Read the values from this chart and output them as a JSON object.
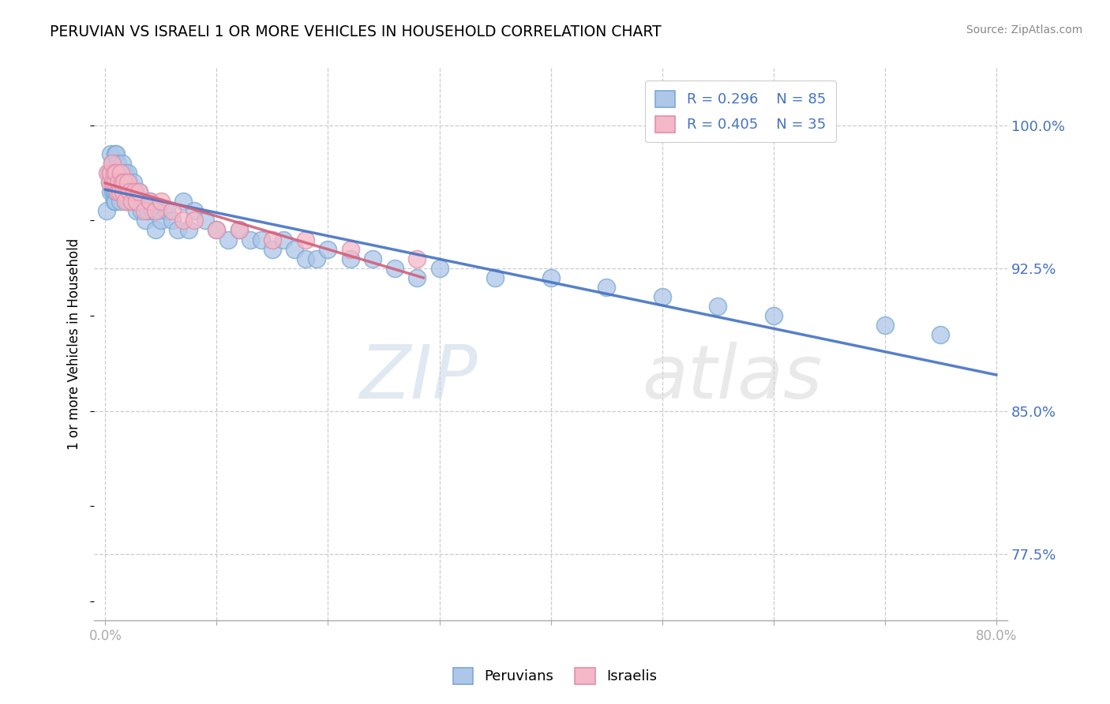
{
  "title": "PERUVIAN VS ISRAELI 1 OR MORE VEHICLES IN HOUSEHOLD CORRELATION CHART",
  "source": "Source: ZipAtlas.com",
  "ylabel": "1 or more Vehicles in Household",
  "watermark": "ZIPatlas",
  "legend_r1": "R = 0.296",
  "legend_n1": "N = 85",
  "legend_r2": "R = 0.405",
  "legend_n2": "N = 35",
  "peruvian_color": "#aec6e8",
  "israeli_color": "#f4b8c8",
  "peruvian_edge": "#7aaad4",
  "israeli_edge": "#e090a8",
  "peruvian_line_color": "#4472c4",
  "israeli_line_color": "#d45f7a",
  "grid_color": "#cccccc",
  "ytick_vals": [
    0.775,
    0.85,
    0.925,
    1.0
  ],
  "ytick_labels": [
    "77.5%",
    "85.0%",
    "92.5%",
    "100.0%"
  ],
  "xmin": 0.0,
  "xmax": 0.8,
  "ymin": 0.74,
  "ymax": 1.03,
  "peru_x": [
    0.001,
    0.003,
    0.004,
    0.005,
    0.005,
    0.005,
    0.006,
    0.006,
    0.007,
    0.007,
    0.008,
    0.008,
    0.008,
    0.009,
    0.009,
    0.009,
    0.01,
    0.01,
    0.01,
    0.011,
    0.011,
    0.012,
    0.012,
    0.013,
    0.013,
    0.014,
    0.015,
    0.015,
    0.016,
    0.016,
    0.017,
    0.018,
    0.018,
    0.019,
    0.02,
    0.02,
    0.021,
    0.022,
    0.023,
    0.024,
    0.025,
    0.026,
    0.027,
    0.028,
    0.03,
    0.032,
    0.034,
    0.036,
    0.038,
    0.04,
    0.042,
    0.045,
    0.048,
    0.05,
    0.055,
    0.06,
    0.065,
    0.07,
    0.075,
    0.08,
    0.09,
    0.1,
    0.11,
    0.12,
    0.13,
    0.14,
    0.15,
    0.16,
    0.17,
    0.18,
    0.19,
    0.2,
    0.22,
    0.24,
    0.26,
    0.28,
    0.3,
    0.35,
    0.4,
    0.45,
    0.5,
    0.55,
    0.6,
    0.7,
    0.75
  ],
  "peru_y": [
    0.955,
    0.975,
    0.97,
    0.985,
    0.975,
    0.965,
    0.98,
    0.97,
    0.975,
    0.965,
    0.975,
    0.965,
    0.96,
    0.985,
    0.975,
    0.96,
    0.985,
    0.975,
    0.965,
    0.98,
    0.97,
    0.975,
    0.965,
    0.97,
    0.96,
    0.975,
    0.98,
    0.97,
    0.975,
    0.965,
    0.97,
    0.975,
    0.96,
    0.965,
    0.975,
    0.96,
    0.97,
    0.965,
    0.96,
    0.965,
    0.97,
    0.96,
    0.965,
    0.955,
    0.965,
    0.955,
    0.96,
    0.95,
    0.955,
    0.96,
    0.955,
    0.945,
    0.955,
    0.95,
    0.955,
    0.95,
    0.945,
    0.96,
    0.945,
    0.955,
    0.95,
    0.945,
    0.94,
    0.945,
    0.94,
    0.94,
    0.935,
    0.94,
    0.935,
    0.93,
    0.93,
    0.935,
    0.93,
    0.93,
    0.925,
    0.92,
    0.925,
    0.92,
    0.92,
    0.915,
    0.91,
    0.905,
    0.9,
    0.895,
    0.89
  ],
  "isr_x": [
    0.002,
    0.004,
    0.005,
    0.006,
    0.007,
    0.008,
    0.009,
    0.01,
    0.011,
    0.012,
    0.013,
    0.014,
    0.015,
    0.016,
    0.017,
    0.018,
    0.02,
    0.022,
    0.024,
    0.026,
    0.028,
    0.03,
    0.035,
    0.04,
    0.045,
    0.05,
    0.06,
    0.07,
    0.08,
    0.1,
    0.12,
    0.15,
    0.18,
    0.22,
    0.28
  ],
  "isr_y": [
    0.975,
    0.97,
    0.975,
    0.98,
    0.97,
    0.975,
    0.97,
    0.975,
    0.965,
    0.97,
    0.965,
    0.975,
    0.97,
    0.965,
    0.97,
    0.96,
    0.97,
    0.965,
    0.96,
    0.965,
    0.96,
    0.965,
    0.955,
    0.96,
    0.955,
    0.96,
    0.955,
    0.95,
    0.95,
    0.945,
    0.945,
    0.94,
    0.94,
    0.935,
    0.93
  ]
}
